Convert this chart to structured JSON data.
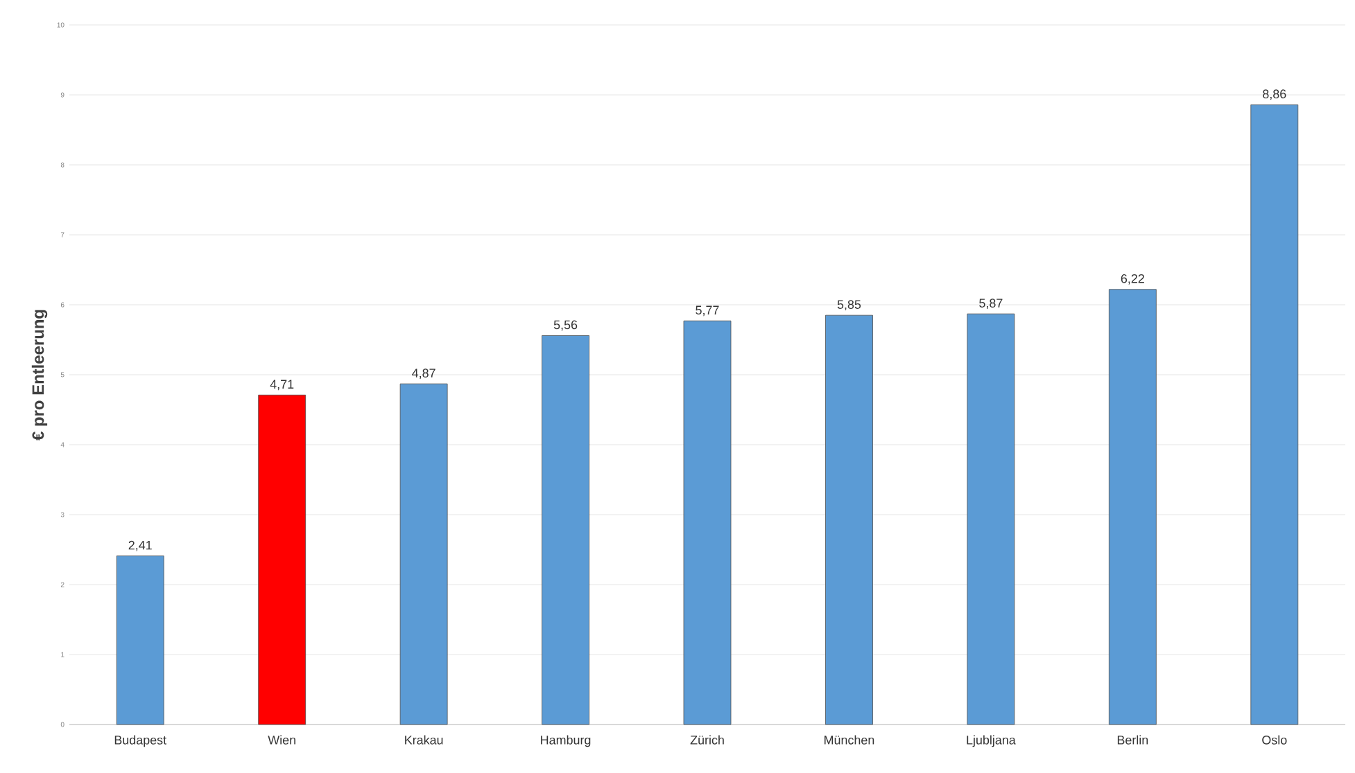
{
  "chart_data": {
    "type": "bar",
    "ylabel": "€ pro Entleerung",
    "categories": [
      "Budapest",
      "Wien",
      "Krakau",
      "Hamburg",
      "Zürich",
      "München",
      "Ljubljana",
      "Berlin",
      "Oslo"
    ],
    "values": [
      2.41,
      4.71,
      4.87,
      5.56,
      5.77,
      5.85,
      5.87,
      6.22,
      8.86
    ],
    "value_labels": [
      "2,41",
      "4,71",
      "4,87",
      "5,56",
      "5,77",
      "5,85",
      "5,87",
      "6,22",
      "8,86"
    ],
    "colors": [
      "#5b9bd5",
      "#ff0000",
      "#5b9bd5",
      "#5b9bd5",
      "#5b9bd5",
      "#5b9bd5",
      "#5b9bd5",
      "#5b9bd5",
      "#5b9bd5"
    ],
    "ylim": [
      0,
      10
    ],
    "yticks": [
      0,
      1,
      2,
      3,
      4,
      5,
      6,
      7,
      8,
      9,
      10
    ],
    "grid": "y"
  }
}
